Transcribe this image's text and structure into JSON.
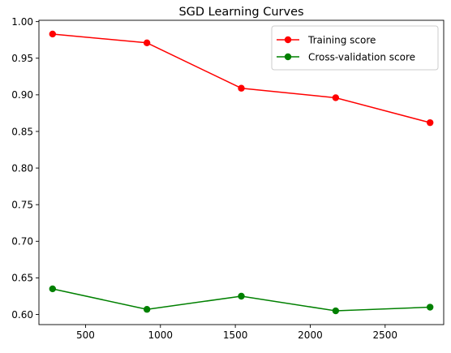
{
  "chart_data": {
    "type": "line",
    "title": "SGD Learning Curves",
    "xlabel": "",
    "ylabel": "",
    "x": [
      280,
      910,
      1540,
      2170,
      2800
    ],
    "series": [
      {
        "name": "Training score",
        "color": "#ff0000",
        "values": [
          0.983,
          0.971,
          0.909,
          0.896,
          0.862
        ]
      },
      {
        "name": "Cross-validation score",
        "color": "#008000",
        "values": [
          0.635,
          0.607,
          0.625,
          0.605,
          0.61
        ]
      }
    ],
    "xlim": [
      189,
      2891
    ],
    "ylim": [
      0.5862,
      1.0018
    ],
    "xticks": [
      500,
      1000,
      1500,
      2000,
      2500
    ],
    "xtick_labels": [
      "500",
      "1000",
      "1500",
      "2000",
      "2500"
    ],
    "yticks": [
      0.6,
      0.65,
      0.7,
      0.75,
      0.8,
      0.85,
      0.9,
      0.95,
      1.0
    ],
    "ytick_labels": [
      "0.60",
      "0.65",
      "0.70",
      "0.75",
      "0.80",
      "0.85",
      "0.90",
      "0.95",
      "1.00"
    ],
    "grid": false,
    "legend": "top-right",
    "marker": "circle"
  }
}
